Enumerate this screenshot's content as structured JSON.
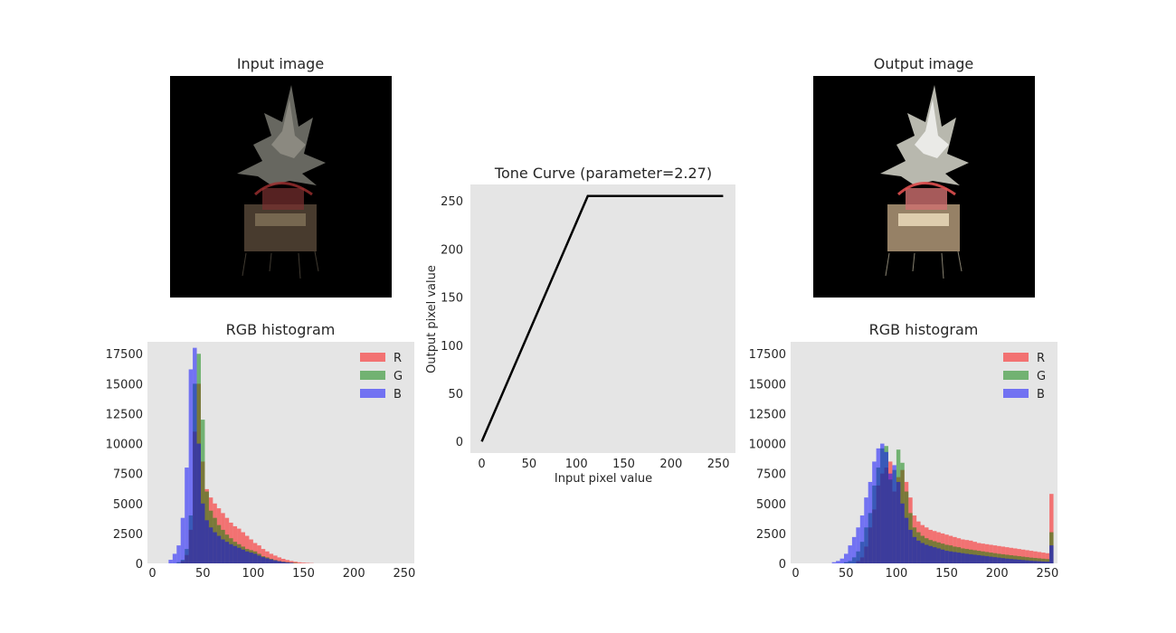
{
  "colors": {
    "panel_bg": "#e5e5e5",
    "R": "#ff0000",
    "G": "#008000",
    "B": "#0000ff",
    "curve": "#000000",
    "image_bg": "#000000"
  },
  "input_image": {
    "title": "Input image"
  },
  "output_image": {
    "title": "Output image"
  },
  "chart_data": [
    {
      "id": "tone-curve",
      "type": "line",
      "title": "Tone Curve (parameter=2.27)",
      "xlabel": "Input pixel value",
      "ylabel": "Output pixel value",
      "xlim": [
        -12,
        268
      ],
      "ylim": [
        -12,
        267
      ],
      "xticks": [
        0,
        50,
        100,
        150,
        200,
        250
      ],
      "yticks": [
        0,
        50,
        100,
        150,
        200,
        250
      ],
      "grid": false,
      "series": [
        {
          "x": [
            0,
            112,
            255
          ],
          "y": [
            0,
            255,
            255
          ]
        }
      ]
    },
    {
      "id": "input-histogram",
      "type": "bar",
      "title": "RGB histogram",
      "xlim": [
        -5,
        260
      ],
      "ylim": [
        0,
        18500
      ],
      "xticks": [
        0,
        50,
        100,
        150,
        200,
        250
      ],
      "yticks": [
        0,
        2500,
        5000,
        7500,
        10000,
        12500,
        15000,
        17500
      ],
      "legend": "top-right",
      "bin_width": 4,
      "series": [
        {
          "name": "R",
          "bins": [
            [
              28,
              200
            ],
            [
              32,
              700
            ],
            [
              36,
              2800
            ],
            [
              40,
              11000
            ],
            [
              44,
              15000
            ],
            [
              48,
              8500
            ],
            [
              52,
              6200
            ],
            [
              56,
              5500
            ],
            [
              60,
              5000
            ],
            [
              64,
              4600
            ],
            [
              68,
              4200
            ],
            [
              72,
              3800
            ],
            [
              76,
              3400
            ],
            [
              80,
              3100
            ],
            [
              84,
              2900
            ],
            [
              88,
              2600
            ],
            [
              92,
              2300
            ],
            [
              96,
              2000
            ],
            [
              100,
              1700
            ],
            [
              104,
              1500
            ],
            [
              108,
              1200
            ],
            [
              112,
              1000
            ],
            [
              116,
              800
            ],
            [
              120,
              650
            ],
            [
              124,
              500
            ],
            [
              128,
              380
            ],
            [
              132,
              280
            ],
            [
              136,
              200
            ],
            [
              140,
              140
            ],
            [
              144,
              90
            ],
            [
              148,
              60
            ],
            [
              152,
              40
            ],
            [
              156,
              25
            ]
          ]
        },
        {
          "name": "G",
          "bins": [
            [
              24,
              100
            ],
            [
              28,
              300
            ],
            [
              32,
              1200
            ],
            [
              36,
              4000
            ],
            [
              40,
              15000
            ],
            [
              44,
              17500
            ],
            [
              48,
              12000
            ],
            [
              52,
              6000
            ],
            [
              56,
              4400
            ],
            [
              60,
              3800
            ],
            [
              64,
              3200
            ],
            [
              68,
              2800
            ],
            [
              72,
              2400
            ],
            [
              76,
              2100
            ],
            [
              80,
              1800
            ],
            [
              84,
              1600
            ],
            [
              88,
              1400
            ],
            [
              92,
              1200
            ],
            [
              96,
              1100
            ],
            [
              100,
              1000
            ],
            [
              104,
              800
            ],
            [
              108,
              600
            ],
            [
              112,
              500
            ],
            [
              116,
              380
            ],
            [
              120,
              280
            ],
            [
              124,
              200
            ],
            [
              128,
              140
            ],
            [
              132,
              100
            ],
            [
              136,
              60
            ],
            [
              140,
              40
            ]
          ]
        },
        {
          "name": "B",
          "bins": [
            [
              16,
              300
            ],
            [
              20,
              800
            ],
            [
              24,
              1500
            ],
            [
              28,
              3800
            ],
            [
              32,
              8000
            ],
            [
              36,
              16200
            ],
            [
              40,
              18000
            ],
            [
              44,
              10000
            ],
            [
              48,
              5000
            ],
            [
              52,
              3600
            ],
            [
              56,
              3000
            ],
            [
              60,
              2600
            ],
            [
              64,
              2300
            ],
            [
              68,
              2000
            ],
            [
              72,
              1800
            ],
            [
              76,
              1600
            ],
            [
              80,
              1450
            ],
            [
              84,
              1300
            ],
            [
              88,
              1150
            ],
            [
              92,
              1000
            ],
            [
              96,
              900
            ],
            [
              100,
              800
            ],
            [
              104,
              650
            ],
            [
              108,
              520
            ],
            [
              112,
              420
            ],
            [
              116,
              330
            ],
            [
              120,
              250
            ],
            [
              124,
              180
            ],
            [
              128,
              120
            ],
            [
              132,
              80
            ],
            [
              136,
              50
            ]
          ]
        }
      ]
    },
    {
      "id": "output-histogram",
      "type": "bar",
      "title": "RGB histogram",
      "xlim": [
        -5,
        260
      ],
      "ylim": [
        0,
        18500
      ],
      "xticks": [
        0,
        50,
        100,
        150,
        200,
        250
      ],
      "yticks": [
        0,
        2500,
        5000,
        7500,
        10000,
        12500,
        15000,
        17500
      ],
      "legend": "top-right",
      "bin_width": 4,
      "series": [
        {
          "name": "R",
          "bins": [
            [
              60,
              200
            ],
            [
              64,
              500
            ],
            [
              68,
              1400
            ],
            [
              72,
              3000
            ],
            [
              76,
              4500
            ],
            [
              80,
              6500
            ],
            [
              84,
              7500
            ],
            [
              88,
              8000
            ],
            [
              92,
              8500
            ],
            [
              96,
              6000
            ],
            [
              100,
              7200
            ],
            [
              104,
              7800
            ],
            [
              108,
              6800
            ],
            [
              112,
              5500
            ],
            [
              116,
              4000
            ],
            [
              120,
              3500
            ],
            [
              124,
              3200
            ],
            [
              128,
              3000
            ],
            [
              132,
              2800
            ],
            [
              136,
              2700
            ],
            [
              140,
              2600
            ],
            [
              144,
              2500
            ],
            [
              148,
              2400
            ],
            [
              152,
              2300
            ],
            [
              156,
              2200
            ],
            [
              160,
              2100
            ],
            [
              164,
              2000
            ],
            [
              168,
              1950
            ],
            [
              172,
              1900
            ],
            [
              176,
              1800
            ],
            [
              180,
              1700
            ],
            [
              184,
              1650
            ],
            [
              188,
              1600
            ],
            [
              192,
              1550
            ],
            [
              196,
              1500
            ],
            [
              200,
              1450
            ],
            [
              204,
              1400
            ],
            [
              208,
              1350
            ],
            [
              212,
              1300
            ],
            [
              216,
              1250
            ],
            [
              220,
              1200
            ],
            [
              224,
              1150
            ],
            [
              228,
              1100
            ],
            [
              232,
              1050
            ],
            [
              236,
              1000
            ],
            [
              240,
              950
            ],
            [
              244,
              900
            ],
            [
              248,
              850
            ],
            [
              252,
              5800
            ]
          ]
        },
        {
          "name": "G",
          "bins": [
            [
              48,
              100
            ],
            [
              52,
              200
            ],
            [
              56,
              500
            ],
            [
              60,
              1000
            ],
            [
              64,
              1800
            ],
            [
              68,
              3000
            ],
            [
              72,
              4200
            ],
            [
              76,
              6500
            ],
            [
              80,
              8000
            ],
            [
              84,
              9600
            ],
            [
              88,
              9800
            ],
            [
              92,
              7000
            ],
            [
              96,
              7800
            ],
            [
              100,
              9500
            ],
            [
              104,
              8400
            ],
            [
              108,
              6000
            ],
            [
              112,
              4200
            ],
            [
              116,
              3000
            ],
            [
              120,
              2600
            ],
            [
              124,
              2300
            ],
            [
              128,
              2100
            ],
            [
              132,
              1950
            ],
            [
              136,
              1850
            ],
            [
              140,
              1750
            ],
            [
              144,
              1650
            ],
            [
              148,
              1550
            ],
            [
              152,
              1500
            ],
            [
              156,
              1400
            ],
            [
              160,
              1350
            ],
            [
              164,
              1250
            ],
            [
              168,
              1200
            ],
            [
              172,
              1150
            ],
            [
              176,
              1100
            ],
            [
              180,
              1050
            ],
            [
              184,
              1000
            ],
            [
              188,
              950
            ],
            [
              192,
              900
            ],
            [
              196,
              850
            ],
            [
              200,
              800
            ],
            [
              204,
              760
            ],
            [
              208,
              720
            ],
            [
              212,
              680
            ],
            [
              216,
              640
            ],
            [
              220,
              600
            ],
            [
              224,
              560
            ],
            [
              228,
              520
            ],
            [
              232,
              480
            ],
            [
              236,
              450
            ],
            [
              240,
              420
            ],
            [
              244,
              390
            ],
            [
              248,
              360
            ],
            [
              252,
              2600
            ]
          ]
        },
        {
          "name": "B",
          "bins": [
            [
              36,
              100
            ],
            [
              40,
              200
            ],
            [
              44,
              400
            ],
            [
              48,
              800
            ],
            [
              52,
              1500
            ],
            [
              56,
              2200
            ],
            [
              60,
              3000
            ],
            [
              64,
              4000
            ],
            [
              68,
              5500
            ],
            [
              72,
              6800
            ],
            [
              76,
              8500
            ],
            [
              80,
              9600
            ],
            [
              84,
              10000
            ],
            [
              88,
              9300
            ],
            [
              92,
              7500
            ],
            [
              96,
              8200
            ],
            [
              100,
              6800
            ],
            [
              104,
              5000
            ],
            [
              108,
              3800
            ],
            [
              112,
              2800
            ],
            [
              116,
              2200
            ],
            [
              120,
              1900
            ],
            [
              124,
              1700
            ],
            [
              128,
              1550
            ],
            [
              132,
              1450
            ],
            [
              136,
              1350
            ],
            [
              140,
              1250
            ],
            [
              144,
              1150
            ],
            [
              148,
              1050
            ],
            [
              152,
              1000
            ],
            [
              156,
              950
            ],
            [
              160,
              900
            ],
            [
              164,
              850
            ],
            [
              168,
              800
            ],
            [
              172,
              760
            ],
            [
              176,
              720
            ],
            [
              180,
              680
            ],
            [
              184,
              640
            ],
            [
              188,
              600
            ],
            [
              192,
              560
            ],
            [
              196,
              520
            ],
            [
              200,
              480
            ],
            [
              204,
              440
            ],
            [
              208,
              400
            ],
            [
              212,
              370
            ],
            [
              216,
              340
            ],
            [
              220,
              310
            ],
            [
              224,
              280
            ],
            [
              228,
              250
            ],
            [
              232,
              220
            ],
            [
              236,
              200
            ],
            [
              240,
              180
            ],
            [
              244,
              160
            ],
            [
              248,
              140
            ],
            [
              252,
              1500
            ]
          ]
        }
      ]
    }
  ]
}
